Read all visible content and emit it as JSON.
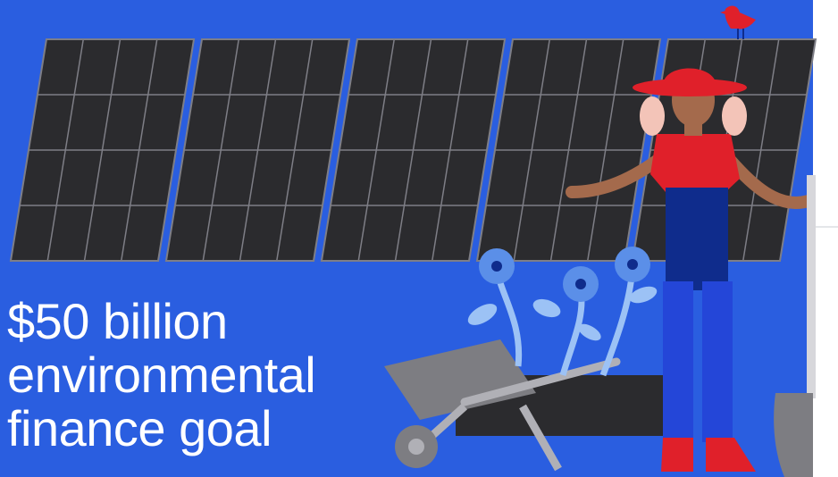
{
  "headline": {
    "line1": "$50 billion",
    "line2": "environmental",
    "line3": "finance goal"
  },
  "palette": {
    "background": "#2a5ee0",
    "right_panel": "#ffffff",
    "panel_fill": "#2b2b2e",
    "panel_grid": "#7e7e86",
    "hat_and_shirt": "#e0202a",
    "apron": "#0f2c8c",
    "overalls": "#2446d8",
    "skin": "#a46a4c",
    "hair": "#f3c4b8",
    "flower": "#5b8fe8",
    "leaf": "#9cc2f5",
    "wheelbarrow": "#7d7d82",
    "bird": "#e0202a"
  },
  "illustration": {
    "solar_panel_count": 5,
    "figures": [
      "gardener",
      "wheelbarrow",
      "flowers",
      "bird",
      "shovel"
    ]
  }
}
